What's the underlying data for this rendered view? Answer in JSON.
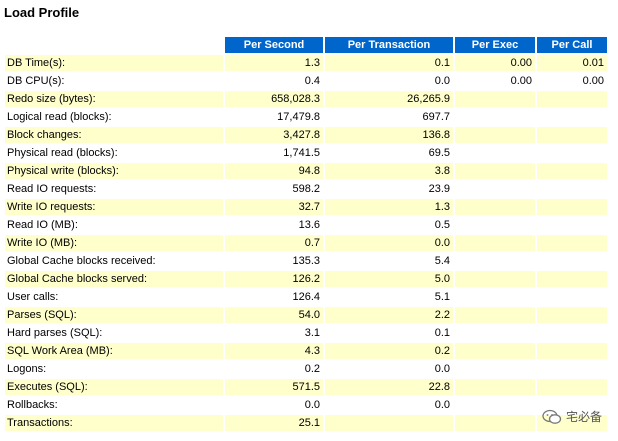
{
  "title": "Load Profile",
  "headers": [
    "Per Second",
    "Per Transaction",
    "Per Exec",
    "Per Call"
  ],
  "rows": [
    {
      "label": "DB Time(s):",
      "per_second": "1.3",
      "per_transaction": "0.1",
      "per_exec": "0.00",
      "per_call": "0.01"
    },
    {
      "label": "DB CPU(s):",
      "per_second": "0.4",
      "per_transaction": "0.0",
      "per_exec": "0.00",
      "per_call": "0.00"
    },
    {
      "label": "Redo size (bytes):",
      "per_second": "658,028.3",
      "per_transaction": "26,265.9",
      "per_exec": "",
      "per_call": ""
    },
    {
      "label": "Logical read (blocks):",
      "per_second": "17,479.8",
      "per_transaction": "697.7",
      "per_exec": "",
      "per_call": ""
    },
    {
      "label": "Block changes:",
      "per_second": "3,427.8",
      "per_transaction": "136.8",
      "per_exec": "",
      "per_call": ""
    },
    {
      "label": "Physical read (blocks):",
      "per_second": "1,741.5",
      "per_transaction": "69.5",
      "per_exec": "",
      "per_call": ""
    },
    {
      "label": "Physical write (blocks):",
      "per_second": "94.8",
      "per_transaction": "3.8",
      "per_exec": "",
      "per_call": ""
    },
    {
      "label": "Read IO requests:",
      "per_second": "598.2",
      "per_transaction": "23.9",
      "per_exec": "",
      "per_call": ""
    },
    {
      "label": "Write IO requests:",
      "per_second": "32.7",
      "per_transaction": "1.3",
      "per_exec": "",
      "per_call": ""
    },
    {
      "label": "Read IO (MB):",
      "per_second": "13.6",
      "per_transaction": "0.5",
      "per_exec": "",
      "per_call": ""
    },
    {
      "label": "Write IO (MB):",
      "per_second": "0.7",
      "per_transaction": "0.0",
      "per_exec": "",
      "per_call": ""
    },
    {
      "label": "Global Cache blocks received:",
      "per_second": "135.3",
      "per_transaction": "5.4",
      "per_exec": "",
      "per_call": ""
    },
    {
      "label": "Global Cache blocks served:",
      "per_second": "126.2",
      "per_transaction": "5.0",
      "per_exec": "",
      "per_call": ""
    },
    {
      "label": "User calls:",
      "per_second": "126.4",
      "per_transaction": "5.1",
      "per_exec": "",
      "per_call": ""
    },
    {
      "label": "Parses (SQL):",
      "per_second": "54.0",
      "per_transaction": "2.2",
      "per_exec": "",
      "per_call": ""
    },
    {
      "label": "Hard parses (SQL):",
      "per_second": "3.1",
      "per_transaction": "0.1",
      "per_exec": "",
      "per_call": ""
    },
    {
      "label": "SQL Work Area (MB):",
      "per_second": "4.3",
      "per_transaction": "0.2",
      "per_exec": "",
      "per_call": ""
    },
    {
      "label": "Logons:",
      "per_second": "0.2",
      "per_transaction": "0.0",
      "per_exec": "",
      "per_call": ""
    },
    {
      "label": "Executes (SQL):",
      "per_second": "571.5",
      "per_transaction": "22.8",
      "per_exec": "",
      "per_call": ""
    },
    {
      "label": "Rollbacks:",
      "per_second": "0.0",
      "per_transaction": "0.0",
      "per_exec": "",
      "per_call": ""
    },
    {
      "label": "Transactions:",
      "per_second": "25.1",
      "per_transaction": "",
      "per_exec": "",
      "per_call": ""
    }
  ],
  "watermark": {
    "text": "宅必备",
    "icon": "wechat-icon"
  },
  "colors": {
    "header_bg": "#0066cc",
    "header_text": "#ffffff",
    "row_odd": "#ffffcc",
    "row_even": "#ffffff"
  }
}
